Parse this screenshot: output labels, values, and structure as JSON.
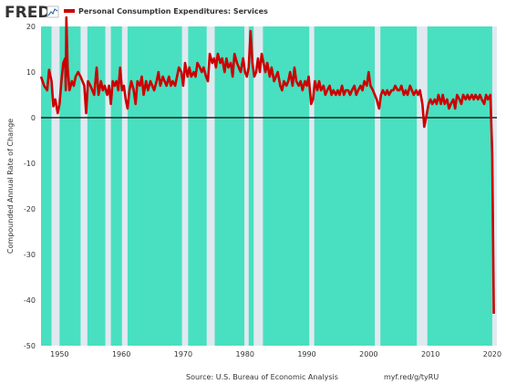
{
  "brand": {
    "name": "FRED"
  },
  "legend": {
    "label": "Personal Consumption Expenditures: Services",
    "color": "#cc0000"
  },
  "footer": {
    "source": "Source: U.S. Bureau of Economic Analysis",
    "link": "myf.red/g/tyRU"
  },
  "colors": {
    "background": "#e1e9f0",
    "periods": "#48e0c0",
    "series": "#cc0000",
    "zero_line": "#000000"
  },
  "chart_data": {
    "type": "line",
    "ylabel": "Compounded Annual Rate of Change",
    "xlim": [
      1947.0,
      2020.75
    ],
    "ylim": [
      -50,
      20
    ],
    "yticks": [
      20,
      10,
      0,
      -10,
      -20,
      -30,
      -40,
      -50
    ],
    "xticks": [
      1950,
      1960,
      1970,
      1980,
      1990,
      2000,
      2010,
      2020
    ],
    "shaded_intervals": [
      [
        1947.0,
        1948.7
      ],
      [
        1950.0,
        1953.4
      ],
      [
        1954.5,
        1957.4
      ],
      [
        1958.3,
        1960.1
      ],
      [
        1961.0,
        1969.8
      ],
      [
        1970.8,
        1973.8
      ],
      [
        1975.1,
        1979.9
      ],
      [
        1980.6,
        1981.4
      ],
      [
        1982.9,
        1990.4
      ],
      [
        1991.2,
        2001.0
      ],
      [
        2001.9,
        2007.8
      ],
      [
        2009.5,
        2020.0
      ]
    ],
    "series": [
      {
        "values": [
          [
            1947.0,
            9.0
          ],
          [
            1947.5,
            7.0
          ],
          [
            1948.0,
            6.0
          ],
          [
            1948.3,
            10.5
          ],
          [
            1948.7,
            8.0
          ],
          [
            1949.0,
            2.5
          ],
          [
            1949.3,
            4.0
          ],
          [
            1949.7,
            1.0
          ],
          [
            1950.0,
            3.0
          ],
          [
            1950.3,
            8.0
          ],
          [
            1950.6,
            12.0
          ],
          [
            1950.9,
            13.0
          ],
          [
            1951.0,
            6.0
          ],
          [
            1951.1,
            22.0
          ],
          [
            1951.3,
            11.0
          ],
          [
            1951.6,
            6.0
          ],
          [
            1952.0,
            8.0
          ],
          [
            1952.3,
            7.0
          ],
          [
            1952.6,
            9.0
          ],
          [
            1953.0,
            10.0
          ],
          [
            1953.4,
            9.0
          ],
          [
            1953.7,
            8.0
          ],
          [
            1954.0,
            7.0
          ],
          [
            1954.3,
            1.0
          ],
          [
            1954.6,
            8.0
          ],
          [
            1955.0,
            7.0
          ],
          [
            1955.3,
            6.0
          ],
          [
            1955.6,
            5.0
          ],
          [
            1956.0,
            11.0
          ],
          [
            1956.3,
            5.0
          ],
          [
            1956.7,
            8.0
          ],
          [
            1957.0,
            6.0
          ],
          [
            1957.3,
            7.0
          ],
          [
            1957.7,
            5.0
          ],
          [
            1958.0,
            7.0
          ],
          [
            1958.3,
            3.0
          ],
          [
            1958.6,
            8.0
          ],
          [
            1958.9,
            7.0
          ],
          [
            1959.2,
            8.0
          ],
          [
            1959.5,
            6.0
          ],
          [
            1959.8,
            11.0
          ],
          [
            1960.1,
            6.0
          ],
          [
            1960.4,
            7.0
          ],
          [
            1960.7,
            4.0
          ],
          [
            1961.0,
            2.0
          ],
          [
            1961.3,
            6.0
          ],
          [
            1961.6,
            8.0
          ],
          [
            1962.0,
            6.0
          ],
          [
            1962.3,
            3.0
          ],
          [
            1962.6,
            8.0
          ],
          [
            1963.0,
            7.0
          ],
          [
            1963.3,
            9.0
          ],
          [
            1963.6,
            5.0
          ],
          [
            1964.0,
            8.0
          ],
          [
            1964.3,
            6.0
          ],
          [
            1964.7,
            8.0
          ],
          [
            1965.0,
            7.0
          ],
          [
            1965.3,
            6.0
          ],
          [
            1965.7,
            8.0
          ],
          [
            1966.0,
            10.0
          ],
          [
            1966.3,
            7.0
          ],
          [
            1966.7,
            9.0
          ],
          [
            1967.0,
            8.0
          ],
          [
            1967.3,
            7.0
          ],
          [
            1967.7,
            9.0
          ],
          [
            1968.0,
            7.0
          ],
          [
            1968.3,
            8.0
          ],
          [
            1968.7,
            7.0
          ],
          [
            1969.0,
            9.0
          ],
          [
            1969.3,
            11.0
          ],
          [
            1969.7,
            10.0
          ],
          [
            1970.0,
            7.0
          ],
          [
            1970.3,
            12.0
          ],
          [
            1970.7,
            9.0
          ],
          [
            1971.0,
            11.0
          ],
          [
            1971.3,
            9.0
          ],
          [
            1971.7,
            10.0
          ],
          [
            1972.0,
            9.0
          ],
          [
            1972.3,
            12.0
          ],
          [
            1972.7,
            11.0
          ],
          [
            1973.0,
            10.0
          ],
          [
            1973.3,
            11.0
          ],
          [
            1973.7,
            9.0
          ],
          [
            1974.0,
            8.0
          ],
          [
            1974.3,
            14.0
          ],
          [
            1974.7,
            12.0
          ],
          [
            1975.0,
            13.0
          ],
          [
            1975.3,
            11.0
          ],
          [
            1975.6,
            14.0
          ],
          [
            1976.0,
            12.0
          ],
          [
            1976.3,
            13.0
          ],
          [
            1976.7,
            10.0
          ],
          [
            1977.0,
            13.0
          ],
          [
            1977.3,
            11.0
          ],
          [
            1977.7,
            12.0
          ],
          [
            1978.0,
            9.0
          ],
          [
            1978.3,
            14.0
          ],
          [
            1978.7,
            12.0
          ],
          [
            1979.0,
            11.0
          ],
          [
            1979.3,
            10.0
          ],
          [
            1979.7,
            13.0
          ],
          [
            1980.0,
            10.0
          ],
          [
            1980.3,
            9.0
          ],
          [
            1980.6,
            11.0
          ],
          [
            1980.9,
            19.0
          ],
          [
            1981.2,
            12.0
          ],
          [
            1981.5,
            9.0
          ],
          [
            1981.8,
            10.0
          ],
          [
            1982.1,
            13.0
          ],
          [
            1982.4,
            10.0
          ],
          [
            1982.7,
            14.0
          ],
          [
            1983.0,
            12.0
          ],
          [
            1983.3,
            10.0
          ],
          [
            1983.6,
            12.0
          ],
          [
            1984.0,
            9.0
          ],
          [
            1984.3,
            11.0
          ],
          [
            1984.7,
            8.0
          ],
          [
            1985.0,
            9.0
          ],
          [
            1985.3,
            10.0
          ],
          [
            1985.7,
            7.0
          ],
          [
            1986.0,
            6.0
          ],
          [
            1986.3,
            8.0
          ],
          [
            1986.7,
            7.0
          ],
          [
            1987.0,
            8.0
          ],
          [
            1987.3,
            10.0
          ],
          [
            1987.7,
            7.0
          ],
          [
            1988.0,
            11.0
          ],
          [
            1988.3,
            8.0
          ],
          [
            1988.7,
            7.0
          ],
          [
            1989.0,
            8.0
          ],
          [
            1989.3,
            6.0
          ],
          [
            1989.7,
            8.0
          ],
          [
            1990.0,
            7.0
          ],
          [
            1990.3,
            9.0
          ],
          [
            1990.7,
            3.0
          ],
          [
            1991.0,
            4.0
          ],
          [
            1991.3,
            8.0
          ],
          [
            1991.7,
            6.0
          ],
          [
            1992.0,
            8.0
          ],
          [
            1992.3,
            6.0
          ],
          [
            1992.7,
            7.0
          ],
          [
            1993.0,
            5.0
          ],
          [
            1993.3,
            6.0
          ],
          [
            1993.7,
            7.0
          ],
          [
            1994.0,
            5.0
          ],
          [
            1994.3,
            6.0
          ],
          [
            1994.7,
            5.0
          ],
          [
            1995.0,
            6.0
          ],
          [
            1995.3,
            5.0
          ],
          [
            1995.7,
            7.0
          ],
          [
            1996.0,
            5.0
          ],
          [
            1996.3,
            6.0
          ],
          [
            1996.7,
            6.0
          ],
          [
            1997.0,
            5.0
          ],
          [
            1997.3,
            6.0
          ],
          [
            1997.7,
            7.0
          ],
          [
            1998.0,
            5.0
          ],
          [
            1998.3,
            6.0
          ],
          [
            1998.7,
            7.0
          ],
          [
            1999.0,
            6.0
          ],
          [
            1999.3,
            8.0
          ],
          [
            1999.7,
            7.0
          ],
          [
            2000.0,
            10.0
          ],
          [
            2000.3,
            7.0
          ],
          [
            2000.7,
            6.0
          ],
          [
            2001.0,
            5.0
          ],
          [
            2001.3,
            4.0
          ],
          [
            2001.7,
            2.0
          ],
          [
            2002.0,
            5.0
          ],
          [
            2002.3,
            6.0
          ],
          [
            2002.7,
            5.0
          ],
          [
            2003.0,
            6.0
          ],
          [
            2003.3,
            5.0
          ],
          [
            2003.7,
            6.0
          ],
          [
            2004.0,
            6.0
          ],
          [
            2004.3,
            7.0
          ],
          [
            2004.7,
            6.0
          ],
          [
            2005.0,
            6.0
          ],
          [
            2005.3,
            7.0
          ],
          [
            2005.7,
            5.0
          ],
          [
            2006.0,
            6.0
          ],
          [
            2006.3,
            5.0
          ],
          [
            2006.7,
            7.0
          ],
          [
            2007.0,
            6.0
          ],
          [
            2007.3,
            5.0
          ],
          [
            2007.7,
            6.0
          ],
          [
            2008.0,
            5.0
          ],
          [
            2008.3,
            6.0
          ],
          [
            2008.7,
            3.0
          ],
          [
            2009.0,
            -2.0
          ],
          [
            2009.3,
            0.0
          ],
          [
            2009.7,
            3.0
          ],
          [
            2010.0,
            4.0
          ],
          [
            2010.3,
            3.0
          ],
          [
            2010.7,
            4.0
          ],
          [
            2011.0,
            3.0
          ],
          [
            2011.3,
            5.0
          ],
          [
            2011.7,
            3.0
          ],
          [
            2012.0,
            5.0
          ],
          [
            2012.3,
            3.0
          ],
          [
            2012.7,
            4.0
          ],
          [
            2013.0,
            2.0
          ],
          [
            2013.3,
            3.0
          ],
          [
            2013.7,
            4.0
          ],
          [
            2014.0,
            2.0
          ],
          [
            2014.3,
            5.0
          ],
          [
            2014.7,
            4.0
          ],
          [
            2015.0,
            3.0
          ],
          [
            2015.3,
            5.0
          ],
          [
            2015.7,
            4.0
          ],
          [
            2016.0,
            5.0
          ],
          [
            2016.3,
            4.0
          ],
          [
            2016.7,
            5.0
          ],
          [
            2017.0,
            4.0
          ],
          [
            2017.3,
            5.0
          ],
          [
            2017.7,
            4.0
          ],
          [
            2018.0,
            5.0
          ],
          [
            2018.3,
            4.0
          ],
          [
            2018.7,
            3.0
          ],
          [
            2019.0,
            5.0
          ],
          [
            2019.3,
            4.0
          ],
          [
            2019.7,
            5.0
          ],
          [
            2020.0,
            -8.0
          ],
          [
            2020.25,
            -43.0
          ]
        ]
      }
    ]
  }
}
